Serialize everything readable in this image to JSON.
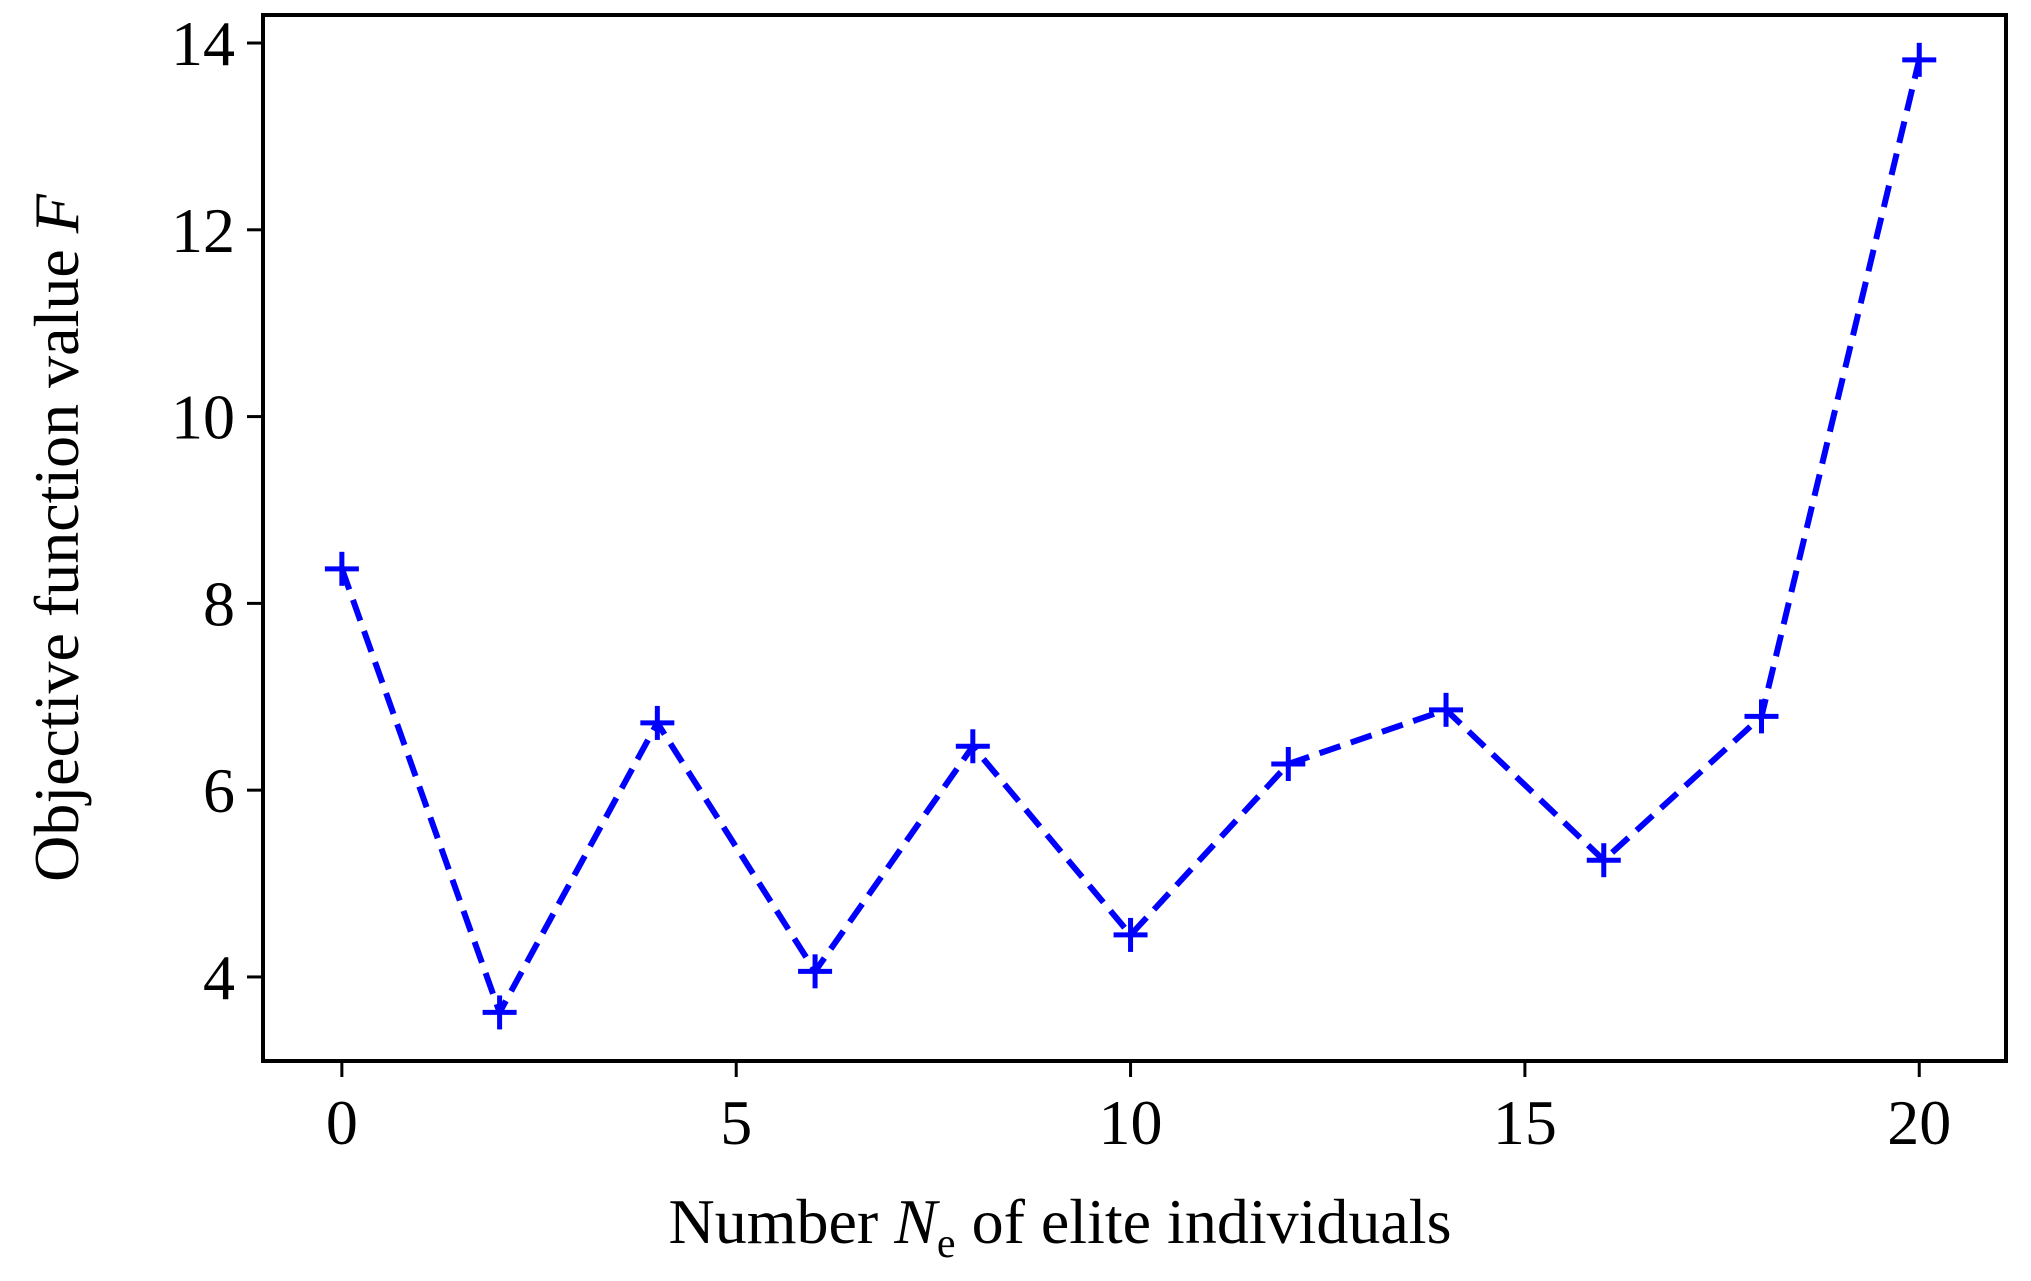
{
  "chart_data": {
    "type": "line",
    "x": [
      0,
      2,
      4,
      6,
      8,
      10,
      12,
      14,
      16,
      18,
      20
    ],
    "series": [
      {
        "values": [
          8.37,
          3.62,
          6.72,
          4.06,
          6.47,
          4.45,
          6.28,
          6.86,
          5.25,
          6.79,
          13.82
        ],
        "color": "#0000ff",
        "line_style": "dashed",
        "marker": "plus"
      }
    ],
    "xlabel": {
      "prefix": "Number ",
      "symbol": "N",
      "subscript": "e",
      "suffix": " of elite individuals"
    },
    "ylabel": {
      "prefix": "Objective function value ",
      "symbol": "F"
    },
    "xlim": [
      -1,
      21.1
    ],
    "ylim": [
      3.1,
      14.3
    ],
    "xticks": [
      0,
      5,
      10,
      15,
      20
    ],
    "yticks": [
      4,
      6,
      8,
      10,
      12,
      14
    ],
    "grid": false,
    "legend": "none"
  }
}
